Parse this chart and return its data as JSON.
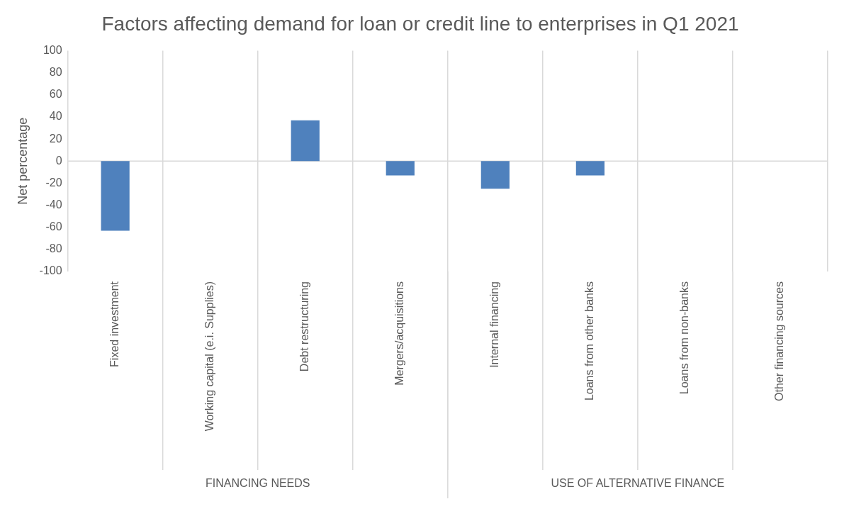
{
  "chart_data": {
    "type": "bar",
    "title": "Factors affecting demand for loan or credit line to enterprises in Q1 2021",
    "ylabel": "Net percentage",
    "categories": [
      "Fixed investment",
      "Working capital (e.i. Supplies)",
      "Debt restructuring",
      "Mergers/acquisitions",
      "Internal financing",
      "Loans from other banks",
      "Loans from non-banks",
      "Other financing sources"
    ],
    "values": [
      -63,
      0,
      37,
      -13,
      -25,
      -13,
      0,
      0
    ],
    "color": "#4f81bd",
    "ylim": [
      -100,
      100
    ],
    "yticks": [
      -100,
      -80,
      -60,
      -40,
      -20,
      0,
      20,
      40,
      60,
      80,
      100
    ],
    "grid": "x",
    "legend": false,
    "ref_lines": [
      {
        "axis": "y",
        "value": 0,
        "color": "#d9d9d9"
      }
    ],
    "annotations": [
      "FINANCING NEEDS",
      "USE OF ALTERNATIVE FINANCE"
    ]
  }
}
